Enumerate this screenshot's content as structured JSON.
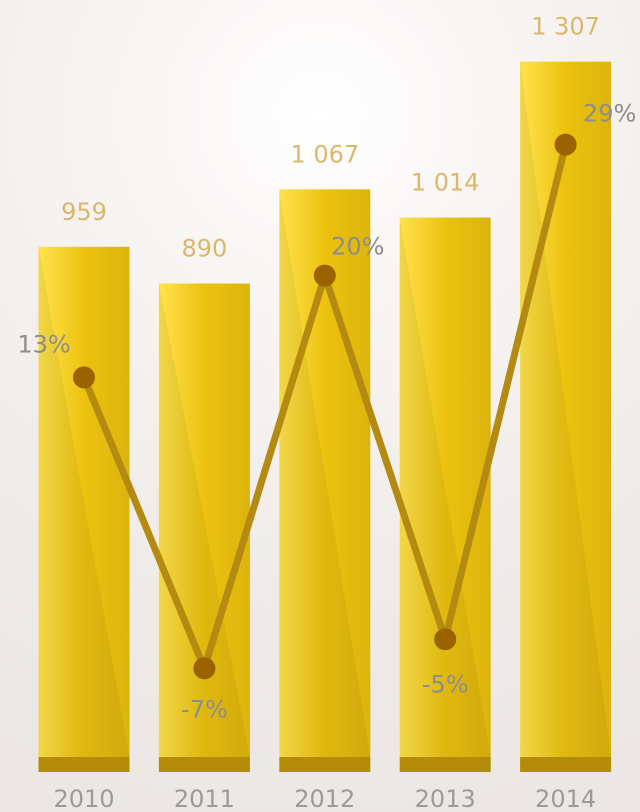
{
  "chart_data": {
    "type": "bar",
    "categories": [
      "2010",
      "2011",
      "2012",
      "2013",
      "2014"
    ],
    "series": [
      {
        "values": [
          959,
          890,
          1067,
          1014,
          1307
        ],
        "value_labels": [
          "959",
          "890",
          "1 067",
          "1 014",
          "1 307"
        ]
      },
      {
        "values": [
          13,
          -7,
          20,
          -5,
          29
        ],
        "value_labels": [
          "13%",
          "-7%",
          "20%",
          "-5%",
          "29%"
        ]
      }
    ],
    "line_series_index": 1,
    "line_range": [
      -10,
      32
    ],
    "colors": {
      "bar_light": "#ffe34d",
      "bar_mid": "#ecc20f",
      "bar_dark": "#dcb40e",
      "bar_base": "#b48c0a",
      "line": "#b48a10",
      "marker": "#9a6300",
      "value_label": "#d9b86a",
      "year_label": "#9b9b9b",
      "growth_label": "#8d8d8d"
    },
    "grid": false,
    "legend": "none"
  }
}
